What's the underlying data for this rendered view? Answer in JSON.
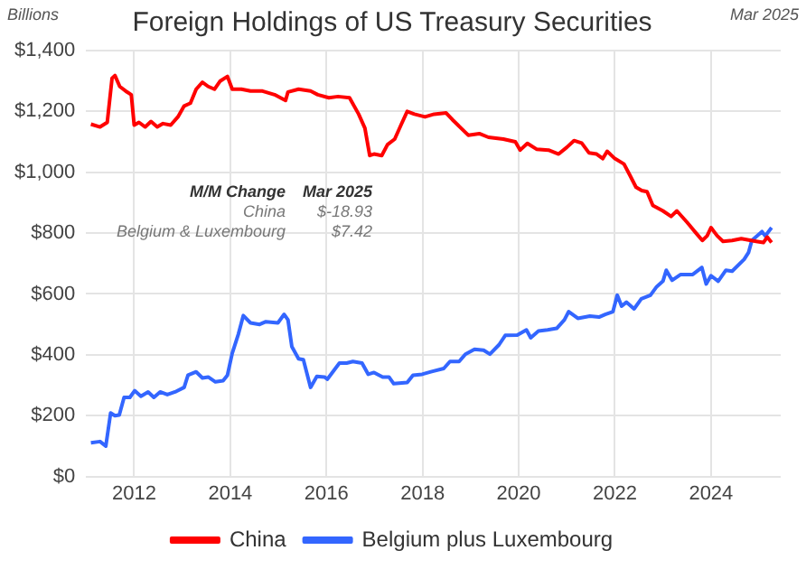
{
  "chart_data": {
    "type": "line",
    "title": "Foreign Holdings of US Treasury Securities",
    "subtitle": "Mar 2025",
    "ylabel": "Billions",
    "annotations": [
      "M/M Change",
      "Mar 2025",
      "China",
      "$-18.93",
      "Belgium & Luxembourg",
      "$7.42"
    ],
    "xlim": [
      2011,
      2025.45
    ],
    "xticks": [
      2012,
      2014,
      2016,
      2018,
      2020,
      2022,
      2024
    ],
    "ylim": [
      0,
      1400
    ],
    "yticks": [
      {
        "value": 0,
        "label": "$0"
      },
      {
        "value": 200,
        "label": "$200"
      },
      {
        "value": 400,
        "label": "$400"
      },
      {
        "value": 600,
        "label": "$600"
      },
      {
        "value": 800,
        "label": "$800"
      },
      {
        "value": 1000,
        "label": "$1,000"
      },
      {
        "value": 1200,
        "label": "$1,200"
      },
      {
        "value": 1400,
        "label": "$1,400"
      }
    ],
    "grid": true,
    "legend": "bottom",
    "series": [
      {
        "name": "China",
        "color": "#ff0000",
        "x": [
          2011.1,
          2011.29,
          2011.44,
          2011.54,
          2011.6,
          2011.7,
          2011.85,
          2011.94,
          2012,
          2012.1,
          2012.23,
          2012.35,
          2012.48,
          2012.6,
          2012.76,
          2012.91,
          2013.04,
          2013.17,
          2013.29,
          2013.42,
          2013.54,
          2013.67,
          2013.79,
          2013.94,
          2014.04,
          2014.23,
          2014.42,
          2014.67,
          2014.92,
          2015.15,
          2015.2,
          2015.42,
          2015.67,
          2015.82,
          2016.05,
          2016.24,
          2016.48,
          2016.67,
          2016.8,
          2016.9,
          2016.99,
          2017.15,
          2017.27,
          2017.42,
          2017.55,
          2017.68,
          2017.83,
          2018.05,
          2018.24,
          2018.49,
          2018.62,
          2018.8,
          2018.95,
          2019.18,
          2019.37,
          2019.68,
          2019.93,
          2020.03,
          2020.18,
          2020.37,
          2020.62,
          2020.83,
          2021,
          2021.15,
          2021.31,
          2021.46,
          2021.62,
          2021.75,
          2021.84,
          2022,
          2022.19,
          2022.31,
          2022.44,
          2022.56,
          2022.67,
          2022.79,
          2023,
          2023.17,
          2023.29,
          2023.5,
          2023.69,
          2023.82,
          2023.92,
          2024,
          2024.13,
          2024.25,
          2024.44,
          2024.63,
          2024.94,
          2025.09,
          2025.17,
          2025.26
        ],
        "values": [
          1158,
          1149,
          1164,
          1309,
          1318,
          1282,
          1264,
          1255,
          1155,
          1164,
          1149,
          1167,
          1149,
          1160,
          1155,
          1182,
          1218,
          1227,
          1273,
          1296,
          1282,
          1273,
          1300,
          1315,
          1273,
          1273,
          1267,
          1267,
          1255,
          1236,
          1264,
          1273,
          1267,
          1255,
          1245,
          1249,
          1245,
          1191,
          1145,
          1055,
          1060,
          1055,
          1091,
          1109,
          1155,
          1200,
          1191,
          1182,
          1191,
          1195,
          1173,
          1145,
          1122,
          1127,
          1115,
          1109,
          1100,
          1073,
          1095,
          1076,
          1073,
          1060,
          1082,
          1104,
          1096,
          1064,
          1060,
          1045,
          1069,
          1045,
          1027,
          991,
          951,
          940,
          936,
          891,
          873,
          855,
          873,
          836,
          800,
          776,
          791,
          818,
          791,
          773,
          776,
          782,
          773,
          769,
          787,
          769
        ]
      },
      {
        "name": "Belgium plus Luxembourg",
        "color": "#3366ff",
        "x": [
          2011.1,
          2011.29,
          2011.41,
          2011.51,
          2011.6,
          2011.69,
          2011.79,
          2011.91,
          2012.01,
          2012.14,
          2012.29,
          2012.41,
          2012.54,
          2012.69,
          2012.85,
          2013.04,
          2013.12,
          2013.29,
          2013.42,
          2013.54,
          2013.69,
          2013.85,
          2013.94,
          2014.04,
          2014.17,
          2014.27,
          2014.42,
          2014.61,
          2014.74,
          2014.99,
          2015.12,
          2015.2,
          2015.28,
          2015.42,
          2015.52,
          2015.67,
          2015.8,
          2015.96,
          2016.02,
          2016.27,
          2016.42,
          2016.55,
          2016.74,
          2016.87,
          2016.99,
          2017.17,
          2017.3,
          2017.4,
          2017.68,
          2017.8,
          2017.99,
          2018.19,
          2018.44,
          2018.57,
          2018.76,
          2018.89,
          2019.08,
          2019.27,
          2019.4,
          2019.59,
          2019.72,
          2019.97,
          2020.16,
          2020.25,
          2020.41,
          2020.6,
          2020.79,
          2020.95,
          2021.04,
          2021.23,
          2021.48,
          2021.67,
          2021.8,
          2021.96,
          2022.05,
          2022.14,
          2022.24,
          2022.4,
          2022.55,
          2022.74,
          2022.87,
          2023,
          2023.07,
          2023.19,
          2023.37,
          2023.62,
          2023.81,
          2023.9,
          2024,
          2024.15,
          2024.31,
          2024.44,
          2024.69,
          2024.78,
          2024.85,
          2025.06,
          2025.13,
          2025.26
        ],
        "values": [
          111,
          115,
          100,
          209,
          200,
          202,
          260,
          260,
          282,
          264,
          278,
          260,
          278,
          269,
          278,
          293,
          333,
          344,
          324,
          327,
          311,
          315,
          333,
          405,
          469,
          529,
          505,
          500,
          509,
          505,
          533,
          515,
          427,
          387,
          384,
          293,
          329,
          327,
          320,
          373,
          373,
          378,
          373,
          336,
          342,
          327,
          327,
          305,
          309,
          333,
          336,
          345,
          355,
          378,
          378,
          402,
          418,
          415,
          402,
          433,
          464,
          465,
          482,
          456,
          478,
          482,
          487,
          515,
          542,
          520,
          527,
          524,
          533,
          542,
          596,
          560,
          573,
          551,
          584,
          596,
          624,
          642,
          678,
          645,
          664,
          664,
          687,
          633,
          660,
          642,
          678,
          675,
          714,
          736,
          776,
          805,
          791,
          818
        ]
      }
    ]
  }
}
